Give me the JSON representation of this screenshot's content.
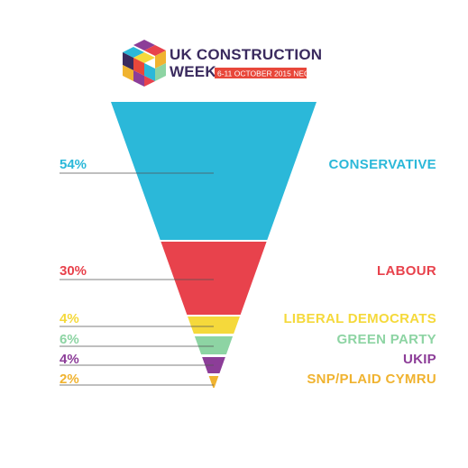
{
  "logo": {
    "line1": "UK CONSTRUCTION",
    "line2": "WEEK",
    "dates": "6-11 OCTOBER 2015 NEC",
    "date_banner_color": "#e8473a",
    "text_color": "#3a2a5e"
  },
  "chart_data": {
    "type": "funnel",
    "categories": [
      "CONSERVATIVE",
      "LABOUR",
      "LIBERAL DEMOCRATS",
      "GREEN PARTY",
      "UKIP",
      "SNP/PLAID CYMRU"
    ],
    "values": [
      54,
      30,
      4,
      6,
      4,
      2
    ],
    "value_labels": [
      "54%",
      "30%",
      "4%",
      "6%",
      "4%",
      "2%"
    ],
    "colors": [
      "#2bb8d9",
      "#e8424c",
      "#f5d93b",
      "#8dd4a3",
      "#8c3d98",
      "#f0b330"
    ],
    "title": "",
    "xlabel": "",
    "ylabel": ""
  }
}
